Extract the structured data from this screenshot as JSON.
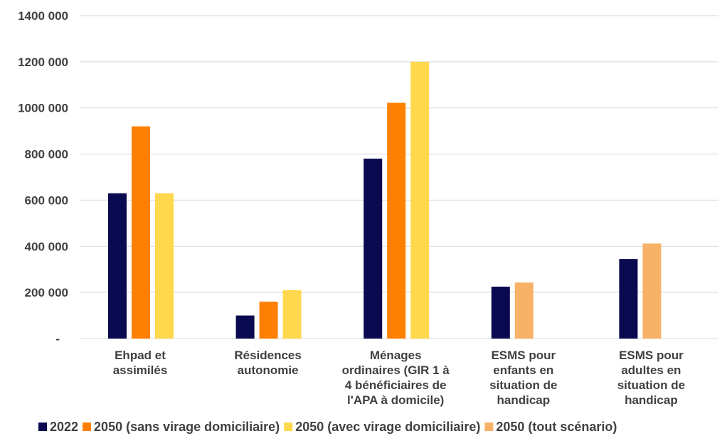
{
  "chart_data": {
    "type": "bar",
    "title": "",
    "xlabel": "",
    "ylabel": "",
    "ylim": [
      0,
      1400000
    ],
    "yticks": [
      0,
      200000,
      400000,
      600000,
      800000,
      1000000,
      1200000,
      1400000
    ],
    "ytick_labels": [
      "-",
      "200 000",
      "400 000",
      "600 000",
      "800 000",
      "1000 000",
      "1200 000",
      "1400 000"
    ],
    "grid": true,
    "legend_position": "bottom",
    "categories": [
      [
        "Ehpad et",
        "assimilés"
      ],
      [
        "Résidences",
        "autonomie"
      ],
      [
        "Ménages",
        "ordinaires (GIR 1 à",
        "4 bénéficiaires de",
        "l'APA à domicile)"
      ],
      [
        "ESMS pour",
        "enfants en",
        "situation de",
        "handicap"
      ],
      [
        "ESMS pour",
        "adultes en",
        "situation de",
        "handicap"
      ]
    ],
    "series": [
      {
        "name": "2022",
        "color": "#0a0a50",
        "values": [
          630000,
          100000,
          780000,
          225000,
          345000
        ]
      },
      {
        "name": "2050 (sans virage domiciliaire)",
        "color": "#ff8000",
        "values": [
          920000,
          160000,
          1022000,
          null,
          null
        ]
      },
      {
        "name": "2050 (avec virage domiciliaire)",
        "color": "#ffd84d",
        "values": [
          630000,
          210000,
          1200000,
          null,
          null
        ]
      },
      {
        "name": "2050 (tout scénario)",
        "color": "#f7b267",
        "values": [
          null,
          null,
          null,
          243000,
          412000
        ]
      }
    ]
  }
}
